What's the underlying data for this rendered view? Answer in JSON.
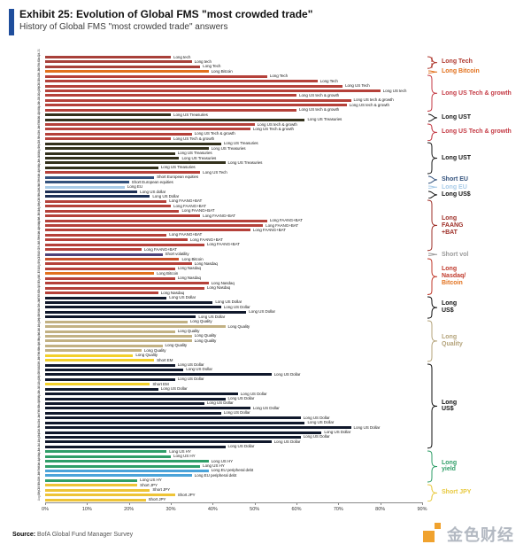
{
  "header": {
    "exhibit_title": "Exhibit 25: Evolution of Global FMS \"most crowded trade\"",
    "subtitle": "History of Global FMS \"most crowded trade\" answers"
  },
  "footer": {
    "source_label": "Source:",
    "source_text": " BofA Global Fund Manager Survey",
    "watermark_text": "金色财经"
  },
  "chart_data": {
    "type": "bar",
    "orientation": "horizontal",
    "title": "Evolution of Global FMS \"most crowded trade\"",
    "xlabel": "% of FMS respondents",
    "xlim": [
      0,
      90
    ],
    "x_ticks": [
      "0%",
      "10%",
      "20%",
      "30%",
      "40%",
      "50%",
      "60%",
      "70%",
      "80%",
      "90%"
    ],
    "grid": false,
    "bars": [
      {
        "date": "Apr-21",
        "label": "Long tech",
        "value": 30,
        "color": "#a8403a"
      },
      {
        "date": "Mar-21",
        "label": "Long tech",
        "value": 35,
        "color": "#a8403a"
      },
      {
        "date": "Feb-21",
        "label": "Long Tech",
        "value": 37,
        "color": "#a8403a"
      },
      {
        "date": "Jan-21",
        "label": "Long Bitcoin",
        "value": 39,
        "color": "#e2711d"
      },
      {
        "date": "Dec-20",
        "label": "Long Tech",
        "value": 53,
        "color": "#b5413a"
      },
      {
        "date": "Nov-20",
        "label": "Long Tech",
        "value": 65,
        "color": "#b5413a"
      },
      {
        "date": "Oct-20",
        "label": "Long US Tech",
        "value": 71,
        "color": "#b5413a"
      },
      {
        "date": "Sep-20",
        "label": "Long US tech",
        "value": 80,
        "color": "#b5413a"
      },
      {
        "date": "Aug-20",
        "label": "Long US tech & growth",
        "value": 60,
        "color": "#b5413a"
      },
      {
        "date": "Jul-20",
        "label": "Long US tech & growth",
        "value": 73,
        "color": "#b5413a"
      },
      {
        "date": "Jun-20",
        "label": "Long US tech & growth",
        "value": 72,
        "color": "#b5413a"
      },
      {
        "date": "May-20",
        "label": "Long US tech & growth",
        "value": 60,
        "color": "#b5413a"
      },
      {
        "date": "Apr-20",
        "label": "Long US Treasuries",
        "value": 30,
        "color": "#33311c"
      },
      {
        "date": "Mar-20",
        "label": "Long US Treasuries",
        "value": 62,
        "color": "#33311c"
      },
      {
        "date": "Feb-20",
        "label": "Long US tech & growth",
        "value": 50,
        "color": "#b5413a"
      },
      {
        "date": "Jan-20",
        "label": "Long US Tech & growth",
        "value": 49,
        "color": "#b5413a"
      },
      {
        "date": "Dec-19",
        "label": "Long US Tech & growth",
        "value": 35,
        "color": "#b5413a"
      },
      {
        "date": "Nov-19",
        "label": "Long US Tech & growth",
        "value": 30,
        "color": "#b5413a"
      },
      {
        "date": "Oct-19",
        "label": "Long US Treasuries",
        "value": 42,
        "color": "#33311c"
      },
      {
        "date": "Sep-19",
        "label": "Long US Treasuries",
        "value": 39,
        "color": "#33311c"
      },
      {
        "date": "Aug-19",
        "label": "Long US Treasuries",
        "value": 31,
        "color": "#33311c"
      },
      {
        "date": "Jul-19",
        "label": "Long US Treasuries",
        "value": 32,
        "color": "#33311c"
      },
      {
        "date": "Jun-19",
        "label": "Long US Treasuries",
        "value": 43,
        "color": "#33311c"
      },
      {
        "date": "May-19",
        "label": "Long US Treasuries",
        "value": 27,
        "color": "#33311c"
      },
      {
        "date": "Apr-19",
        "label": "Long US Tech",
        "value": 37,
        "color": "#b5413a"
      },
      {
        "date": "Mar-19",
        "label": "Short European equities",
        "value": 26,
        "color": "#33527d"
      },
      {
        "date": "Feb-19",
        "label": "Short European equities",
        "value": 20,
        "color": "#33527d"
      },
      {
        "date": "Jan-19",
        "label": "Long EU",
        "value": 19,
        "color": "#a8cbe8"
      },
      {
        "date": "Dec-18",
        "label": "Long US dollar",
        "value": 22,
        "color": "#1d2f55"
      },
      {
        "date": "Nov-18",
        "label": "Long US Dollar",
        "value": 25,
        "color": "#1d2f55"
      },
      {
        "date": "Oct-18",
        "label": "Long FAANG+BAT",
        "value": 29,
        "color": "#b5413a"
      },
      {
        "date": "Sep-18",
        "label": "Long FAANG+BAT",
        "value": 30,
        "color": "#b5413a"
      },
      {
        "date": "Aug-18",
        "label": "Long FAANG+BAT",
        "value": 32,
        "color": "#b5413a"
      },
      {
        "date": "Jul-18",
        "label": "Long FAANG+BAT",
        "value": 37,
        "color": "#b5413a"
      },
      {
        "date": "Jun-18",
        "label": "Long FAANG+BAT",
        "value": 53,
        "color": "#b5413a"
      },
      {
        "date": "May-18",
        "label": "Long FAANG+BAT",
        "value": 52,
        "color": "#b5413a"
      },
      {
        "date": "Apr-18",
        "label": "Long FAANG+BAT",
        "value": 49,
        "color": "#b5413a"
      },
      {
        "date": "Mar-18",
        "label": "Long FAANG+BAT",
        "value": 29,
        "color": "#b5413a"
      },
      {
        "date": "Feb-18",
        "label": "Long FAANG+BAT",
        "value": 34,
        "color": "#b5413a"
      },
      {
        "date": "Jan-18",
        "label": "Long FAANG+BAT",
        "value": 38,
        "color": "#b5413a"
      },
      {
        "date": "Dec-17",
        "label": "Long FAANG+BAT",
        "value": 23,
        "color": "#b5413a"
      },
      {
        "date": "Nov-17",
        "label": "Short volatility",
        "value": 28,
        "color": "#4c4279"
      },
      {
        "date": "Oct-17",
        "label": "Long Bitcoin",
        "value": 32,
        "color": "#c8502a"
      },
      {
        "date": "Sep-17",
        "label": "Long Nasdaq",
        "value": 35,
        "color": "#b5413a"
      },
      {
        "date": "Aug-17",
        "label": "Long Nasdaq",
        "value": 31,
        "color": "#b5413a"
      },
      {
        "date": "Jul-17",
        "label": "Long Bitcoin",
        "value": 26,
        "color": "#e2711d"
      },
      {
        "date": "Jun-17",
        "label": "Long Nasdaq",
        "value": 31,
        "color": "#b5413a"
      },
      {
        "date": "May-17",
        "label": "Long Nasdaq",
        "value": 39,
        "color": "#b5413a"
      },
      {
        "date": "Apr-17",
        "label": "Long Nasdaq",
        "value": 38,
        "color": "#b5413a"
      },
      {
        "date": "Mar-17",
        "label": "Long Nasdaq",
        "value": 27,
        "color": "#b5413a"
      },
      {
        "date": "Feb-17",
        "label": "Long US Dollar",
        "value": 29,
        "color": "#10182b"
      },
      {
        "date": "Jan-17",
        "label": "Long US Dollar",
        "value": 40,
        "color": "#10182b"
      },
      {
        "date": "Dec-16",
        "label": "Long US Dollar",
        "value": 42,
        "color": "#10182b"
      },
      {
        "date": "Nov-16",
        "label": "Long US Dollar",
        "value": 48,
        "color": "#10182b"
      },
      {
        "date": "Oct-16",
        "label": "Long US Dollar",
        "value": 36,
        "color": "#10182b"
      },
      {
        "date": "Sep-16",
        "label": "Long Quality",
        "value": 34,
        "color": "#c2b183"
      },
      {
        "date": "Aug-16",
        "label": "Long Quality",
        "value": 43,
        "color": "#c2b183"
      },
      {
        "date": "Jul-16",
        "label": "Long Quality",
        "value": 31,
        "color": "#c2b183"
      },
      {
        "date": "Jun-16",
        "label": "Long Quality",
        "value": 35,
        "color": "#c2b183"
      },
      {
        "date": "May-16",
        "label": "Long Quality",
        "value": 35,
        "color": "#c2b183"
      },
      {
        "date": "Apr-16",
        "label": "Long Quality",
        "value": 28,
        "color": "#c2b183"
      },
      {
        "date": "Mar-16",
        "label": "Long Quality",
        "value": 23,
        "color": "#c2b183"
      },
      {
        "date": "Feb-16",
        "label": "Long Quality",
        "value": 21,
        "color": "#f3d02a"
      },
      {
        "date": "Jan-16",
        "label": "Short EM",
        "value": 26,
        "color": "#f3d02a"
      },
      {
        "date": "Dec-15",
        "label": "Long US Dollar",
        "value": 31,
        "color": "#10182b"
      },
      {
        "date": "Nov-15",
        "label": "Long US Dollar",
        "value": 33,
        "color": "#10182b"
      },
      {
        "date": "Oct-15",
        "label": "Long US Dollar",
        "value": 54,
        "color": "#10182b"
      },
      {
        "date": "Sep-15",
        "label": "Long US Dollar",
        "value": 31,
        "color": "#10182b"
      },
      {
        "date": "Aug-15",
        "label": "Short EM",
        "value": 25,
        "color": "#f3d02a"
      },
      {
        "date": "Jul-15",
        "label": "Long US Dollar",
        "value": 27,
        "color": "#10182b"
      },
      {
        "date": "Jun-15",
        "label": "Long US Dollar",
        "value": 46,
        "color": "#10182b"
      },
      {
        "date": "May-15",
        "label": "Long US Dollar",
        "value": 43,
        "color": "#10182b"
      },
      {
        "date": "Apr-15",
        "label": "Long US Dollar",
        "value": 38,
        "color": "#10182b"
      },
      {
        "date": "Mar-15",
        "label": "Long US Dollar",
        "value": 49,
        "color": "#10182b"
      },
      {
        "date": "Feb-15",
        "label": "Long US Dollar",
        "value": 42,
        "color": "#10182b"
      },
      {
        "date": "Jan-15",
        "label": "Long US Dollar",
        "value": 61,
        "color": "#10182b"
      },
      {
        "date": "Dec-14",
        "label": "Long US Dollar",
        "value": 62,
        "color": "#10182b"
      },
      {
        "date": "Nov-14",
        "label": "Long US Dollar",
        "value": 73,
        "color": "#10182b"
      },
      {
        "date": "Oct-14",
        "label": "Long US Dollar",
        "value": 66,
        "color": "#10182b"
      },
      {
        "date": "Sep-14",
        "label": "Long US Dollar",
        "value": 61,
        "color": "#10182b"
      },
      {
        "date": "Aug-14",
        "label": "Long US Dollar",
        "value": 54,
        "color": "#10182b"
      },
      {
        "date": "Jul-14",
        "label": "Long US Dollar",
        "value": 43,
        "color": "#10182b"
      },
      {
        "date": "Jun-14",
        "label": "Long US HY",
        "value": 29,
        "color": "#2f9e68"
      },
      {
        "date": "May-14",
        "label": "Long US HY",
        "value": 30,
        "color": "#2f9e68"
      },
      {
        "date": "Apr-14",
        "label": "Long US HY",
        "value": 39,
        "color": "#2f9e68"
      },
      {
        "date": "Mar-14",
        "label": "Long US HY",
        "value": 37,
        "color": "#2f9e68"
      },
      {
        "date": "Feb-14",
        "label": "Long EU peripheral debt",
        "value": 39,
        "color": "#4ba3d9"
      },
      {
        "date": "Jan-14",
        "label": "Long EU peripheral debt",
        "value": 35,
        "color": "#4ba3d9"
      },
      {
        "date": "Dec-13",
        "label": "Long US HY",
        "value": 22,
        "color": "#2f9e68"
      },
      {
        "date": "Nov-13",
        "label": "Short JPY",
        "value": 22,
        "color": "#eec437"
      },
      {
        "date": "Oct-13",
        "label": "Short JPY",
        "value": 25,
        "color": "#eec437"
      },
      {
        "date": "Sep-13",
        "label": "Short JPY",
        "value": 31,
        "color": "#eec437"
      },
      {
        "date": "Aug-13",
        "label": "Short JPY",
        "value": 24,
        "color": "#eec437"
      }
    ],
    "groups": [
      {
        "start": 0,
        "end": 2,
        "color": "#b03a30",
        "lines": [
          {
            "text": "Long Tech",
            "color": "#b03a30"
          }
        ]
      },
      {
        "start": 3,
        "end": 3,
        "color": "#e2711d",
        "lines": [
          {
            "text": "Long Bitcoin",
            "color": "#e2711d"
          }
        ]
      },
      {
        "start": 4,
        "end": 11,
        "color": "#c43a44",
        "lines": [
          {
            "text": "Long US Tech & growth",
            "color": "#c43a44"
          }
        ]
      },
      {
        "start": 12,
        "end": 13,
        "color": "#1a1a1a",
        "lines": [
          {
            "text": "Long UST",
            "color": "#1a1a1a"
          }
        ]
      },
      {
        "start": 14,
        "end": 17,
        "color": "#c43a44",
        "lines": [
          {
            "text": "Long US Tech & growth",
            "color": "#c43a44"
          }
        ]
      },
      {
        "start": 18,
        "end": 24,
        "color": "#1a1a1a",
        "lines": [
          {
            "text": "Long UST",
            "color": "#1a1a1a"
          }
        ]
      },
      {
        "start": 25,
        "end": 26,
        "color": "#33527d",
        "lines": [
          {
            "text": "Short EU",
            "color": "#33527d"
          }
        ]
      },
      {
        "start": 27,
        "end": 27,
        "color": "#a8cbe8",
        "lines": [
          {
            "text": "Long EU",
            "color": "#a8cbe8"
          }
        ]
      },
      {
        "start": 28,
        "end": 29,
        "color": "#111111",
        "lines": [
          {
            "text": "Long US$",
            "color": "#111111"
          }
        ]
      },
      {
        "start": 30,
        "end": 40,
        "color": "#9e2f28",
        "lines": [
          {
            "text": "Long",
            "color": "#9e2f28"
          },
          {
            "text": "FAANG",
            "color": "#9e2f28"
          },
          {
            "text": "+BAT",
            "color": "#9e2f28"
          }
        ]
      },
      {
        "start": 41,
        "end": 41,
        "color": "#9a9a9a",
        "lines": [
          {
            "text": "Short vol",
            "color": "#9a9a9a"
          }
        ]
      },
      {
        "start": 42,
        "end": 49,
        "color": "#c0392b",
        "lines": [
          {
            "text": "Long",
            "color": "#c0392b"
          },
          {
            "text": "Nasdaq/",
            "color": "#c0392b"
          },
          {
            "text": "Bitcoin",
            "color": "#e2711d"
          }
        ]
      },
      {
        "start": 50,
        "end": 54,
        "color": "#111111",
        "lines": [
          {
            "text": "Long",
            "color": "#111111"
          },
          {
            "text": "US$",
            "color": "#111111"
          }
        ]
      },
      {
        "start": 55,
        "end": 63,
        "color": "#b4a37a",
        "lines": [
          {
            "text": "Long",
            "color": "#b4a37a"
          },
          {
            "text": "Quality",
            "color": "#b4a37a"
          }
        ]
      },
      {
        "start": 64,
        "end": 81,
        "color": "#111111",
        "lines": [
          {
            "text": "Long",
            "color": "#111111"
          },
          {
            "text": "US$",
            "color": "#111111"
          }
        ]
      },
      {
        "start": 82,
        "end": 88,
        "color": "#2f9e68",
        "lines": [
          {
            "text": "Long",
            "color": "#2f9e68"
          },
          {
            "text": "yield",
            "color": "#2f9e68"
          }
        ]
      },
      {
        "start": 89,
        "end": 92,
        "color": "#e8c93f",
        "lines": [
          {
            "text": "Short JPY",
            "color": "#e8c93f"
          }
        ]
      }
    ]
  }
}
